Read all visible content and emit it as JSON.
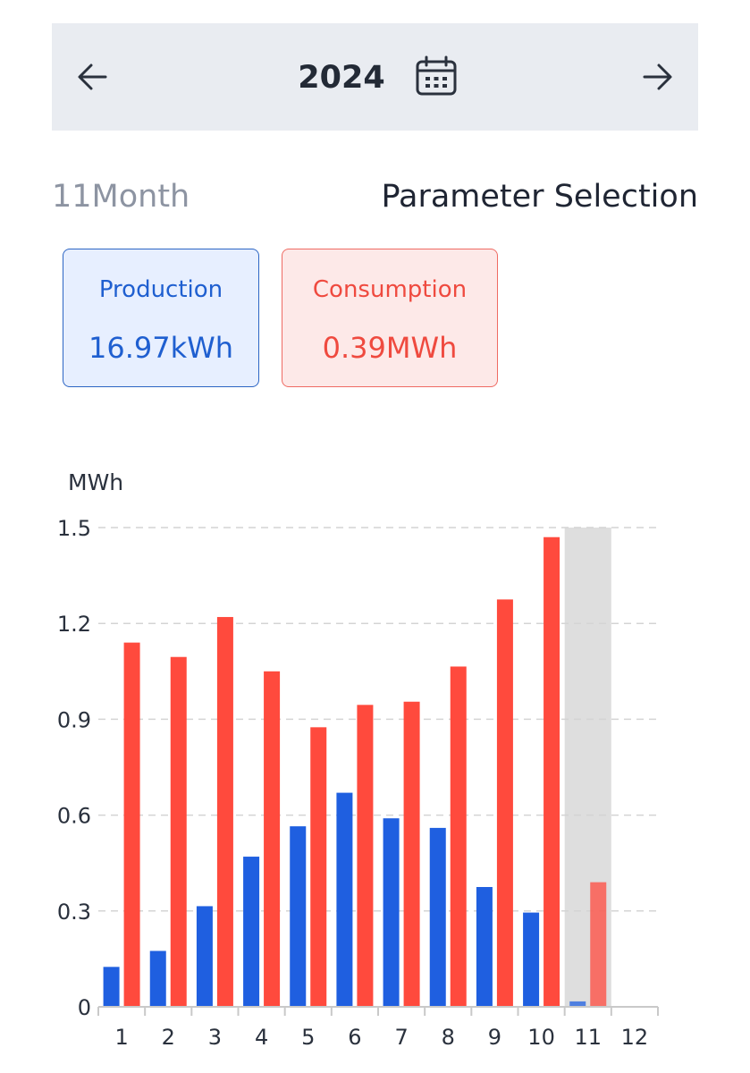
{
  "header": {
    "year": "2024",
    "icons": {
      "prev": "arrow-left-icon",
      "next": "arrow-right-icon",
      "calendar": "calendar-icon"
    }
  },
  "summary": {
    "month_label": "11Month",
    "parameter_selection": "Parameter Selection",
    "production": {
      "label": "Production",
      "value": "16.97kWh",
      "color": "#1f5fd0"
    },
    "consumption": {
      "label": "Consumption",
      "value": "0.39MWh",
      "color": "#ef4a3f"
    }
  },
  "chart_data": {
    "type": "bar",
    "ylabel": "MWh",
    "ylim": [
      0,
      1.5
    ],
    "yticks": [
      "0",
      "0.3",
      "0.6",
      "0.9",
      "1.2",
      "1.5"
    ],
    "categories": [
      "1",
      "2",
      "3",
      "4",
      "5",
      "6",
      "7",
      "8",
      "9",
      "10",
      "11",
      "12"
    ],
    "selected_category": "11",
    "grid": true,
    "series": [
      {
        "color": "#1f5fe0",
        "values": [
          0.125,
          0.175,
          0.315,
          0.47,
          0.565,
          0.67,
          0.59,
          0.56,
          0.375,
          0.295,
          0.017,
          null
        ]
      },
      {
        "color": "#ff4a3d",
        "values": [
          1.14,
          1.095,
          1.22,
          1.05,
          0.875,
          0.945,
          0.955,
          1.065,
          1.275,
          1.47,
          0.39,
          null
        ]
      }
    ]
  }
}
